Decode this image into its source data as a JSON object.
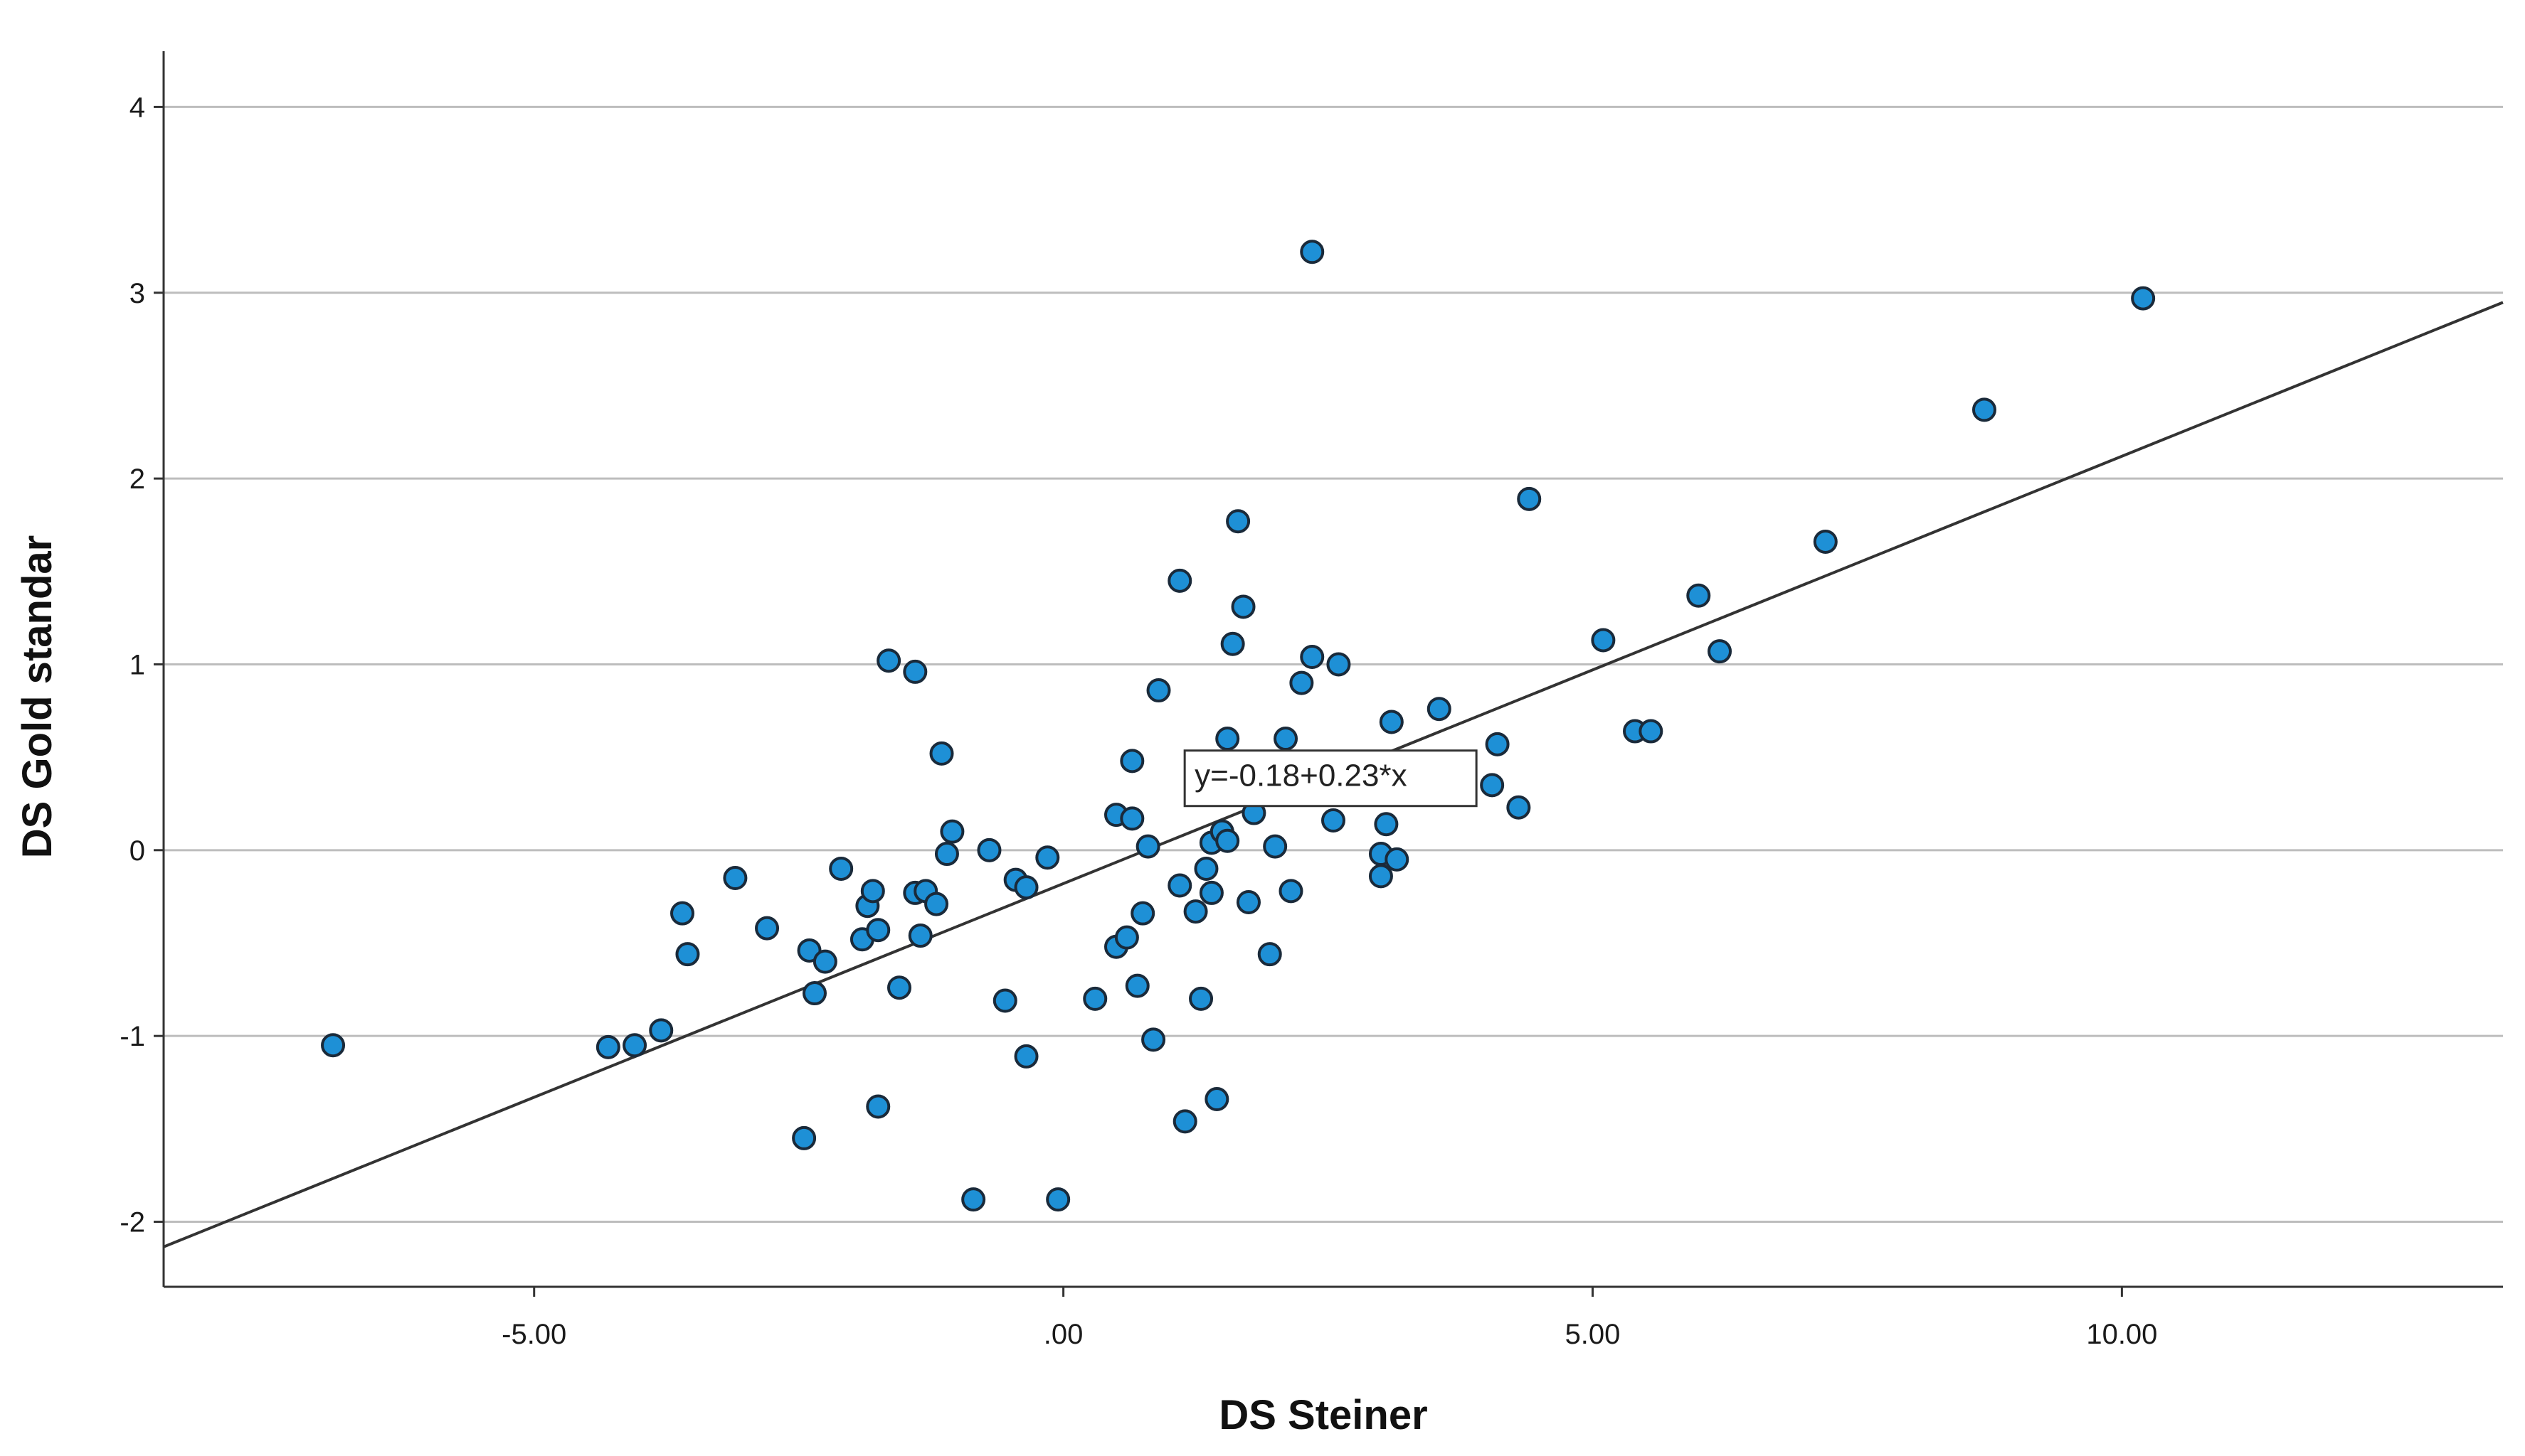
{
  "chart_data": {
    "type": "scatter",
    "xlabel": "DS Steiner",
    "ylabel": "DS Gold standar",
    "xlim": [
      -8.5,
      13.6
    ],
    "ylim": [
      -2.35,
      4.3
    ],
    "x_ticks": [
      {
        "value": -5,
        "label": "-5.00"
      },
      {
        "value": 0,
        "label": ".00"
      },
      {
        "value": 5,
        "label": "5.00"
      },
      {
        "value": 10,
        "label": "10.00"
      }
    ],
    "y_ticks": [
      {
        "value": -2,
        "label": "-2"
      },
      {
        "value": -1,
        "label": "-1"
      },
      {
        "value": 0,
        "label": "0"
      },
      {
        "value": 1,
        "label": "1"
      },
      {
        "value": 2,
        "label": "2"
      },
      {
        "value": 3,
        "label": "3"
      },
      {
        "value": 4,
        "label": "4"
      }
    ],
    "grid": "horizontal",
    "marker_color": "#1e90d6",
    "marker_edge_color": "#1a2a3a",
    "fit_line": {
      "intercept": -0.18,
      "slope": 0.23,
      "color": "#333333"
    },
    "annotation": {
      "text": "y=-0.18+0.23*x",
      "x": 1.2,
      "y": 0.36
    },
    "points": [
      [
        -6.9,
        -1.05
      ],
      [
        -4.3,
        -1.06
      ],
      [
        -4.05,
        -1.05
      ],
      [
        -3.8,
        -0.97
      ],
      [
        -3.55,
        -0.56
      ],
      [
        -3.6,
        -0.34
      ],
      [
        -3.1,
        -0.15
      ],
      [
        -2.8,
        -0.42
      ],
      [
        -2.4,
        -0.54
      ],
      [
        -2.35,
        -0.77
      ],
      [
        -2.25,
        -0.6
      ],
      [
        -2.45,
        -1.55
      ],
      [
        -2.1,
        -0.1
      ],
      [
        -1.9,
        -0.48
      ],
      [
        -1.85,
        -0.3
      ],
      [
        -1.8,
        -0.22
      ],
      [
        -1.75,
        -0.43
      ],
      [
        -1.75,
        -1.38
      ],
      [
        -1.65,
        1.02
      ],
      [
        -1.55,
        -0.74
      ],
      [
        -1.4,
        0.96
      ],
      [
        -1.4,
        -0.23
      ],
      [
        -1.35,
        -0.46
      ],
      [
        -1.3,
        -0.22
      ],
      [
        -1.2,
        -0.29
      ],
      [
        -1.15,
        0.52
      ],
      [
        -1.1,
        -0.02
      ],
      [
        -1.05,
        0.1
      ],
      [
        -0.85,
        -1.88
      ],
      [
        -0.7,
        0.0
      ],
      [
        -0.55,
        -0.81
      ],
      [
        -0.45,
        -0.16
      ],
      [
        -0.35,
        -0.2
      ],
      [
        -0.35,
        -1.11
      ],
      [
        -0.15,
        -0.04
      ],
      [
        -0.05,
        -1.88
      ],
      [
        0.3,
        -0.8
      ],
      [
        0.5,
        -0.52
      ],
      [
        0.5,
        0.19
      ],
      [
        0.6,
        -0.47
      ],
      [
        0.65,
        0.17
      ],
      [
        0.65,
        0.48
      ],
      [
        0.7,
        -0.73
      ],
      [
        0.75,
        -0.34
      ],
      [
        0.8,
        0.02
      ],
      [
        0.85,
        -1.02
      ],
      [
        0.9,
        0.86
      ],
      [
        1.1,
        1.45
      ],
      [
        1.1,
        -0.19
      ],
      [
        1.15,
        -1.46
      ],
      [
        1.25,
        -0.33
      ],
      [
        1.3,
        -0.8
      ],
      [
        1.35,
        -0.1
      ],
      [
        1.4,
        -0.23
      ],
      [
        1.4,
        0.04
      ],
      [
        1.45,
        -1.34
      ],
      [
        1.5,
        0.1
      ],
      [
        1.55,
        0.05
      ],
      [
        1.55,
        0.6
      ],
      [
        1.6,
        1.11
      ],
      [
        1.65,
        1.77
      ],
      [
        1.7,
        1.31
      ],
      [
        1.75,
        -0.28
      ],
      [
        1.8,
        0.2
      ],
      [
        1.95,
        -0.56
      ],
      [
        2.0,
        0.02
      ],
      [
        2.1,
        0.6
      ],
      [
        2.15,
        -0.22
      ],
      [
        2.25,
        0.9
      ],
      [
        2.35,
        1.04
      ],
      [
        2.35,
        3.22
      ],
      [
        2.55,
        0.16
      ],
      [
        2.6,
        1.0
      ],
      [
        3.0,
        -0.02
      ],
      [
        3.0,
        -0.14
      ],
      [
        3.05,
        0.14
      ],
      [
        3.1,
        0.69
      ],
      [
        3.15,
        -0.05
      ],
      [
        3.55,
        0.76
      ],
      [
        4.05,
        0.35
      ],
      [
        4.1,
        0.57
      ],
      [
        4.3,
        0.23
      ],
      [
        4.4,
        1.89
      ],
      [
        5.1,
        1.13
      ],
      [
        5.4,
        0.64
      ],
      [
        5.55,
        0.64
      ],
      [
        6.0,
        1.37
      ],
      [
        6.2,
        1.07
      ],
      [
        7.2,
        1.66
      ],
      [
        8.7,
        2.37
      ],
      [
        10.2,
        2.97
      ]
    ]
  }
}
